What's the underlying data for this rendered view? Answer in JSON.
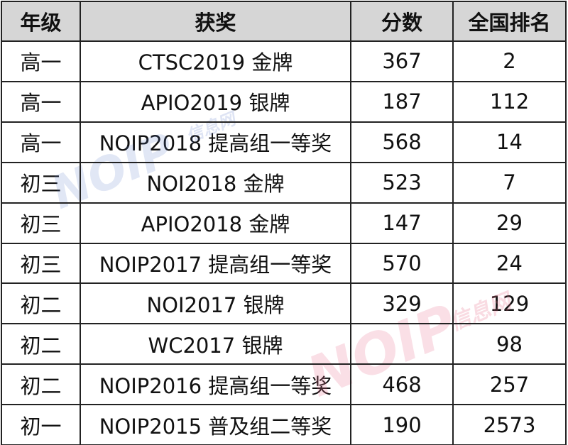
{
  "table": {
    "header": [
      "年级",
      "获奖",
      "分数",
      "全国排名"
    ],
    "rows": [
      [
        "高一",
        "CTSC2019 金牌",
        367,
        2
      ],
      [
        "高一",
        "APIO2019 银牌",
        187,
        112
      ],
      [
        "高一",
        "NOIP2018 提高组一等奖",
        568,
        14
      ],
      [
        "初三",
        "NOI2018 金牌",
        523,
        7
      ],
      [
        "初三",
        "APIO2018 金牌",
        147,
        29
      ],
      [
        "初三",
        "NOIP2017 提高组一等奖",
        570,
        24
      ],
      [
        "初二",
        "NOI2017 银牌",
        329,
        129
      ],
      [
        "初二",
        "WC2017 银牌",
        "",
        98
      ],
      [
        "初二",
        "NOIP2016 提高组一等奖",
        468,
        257
      ],
      [
        "初一",
        "NOIP2015 普及组二等奖",
        190,
        2573
      ]
    ]
  },
  "watermark": {
    "logo": "NOIP",
    "site": "信息网"
  }
}
